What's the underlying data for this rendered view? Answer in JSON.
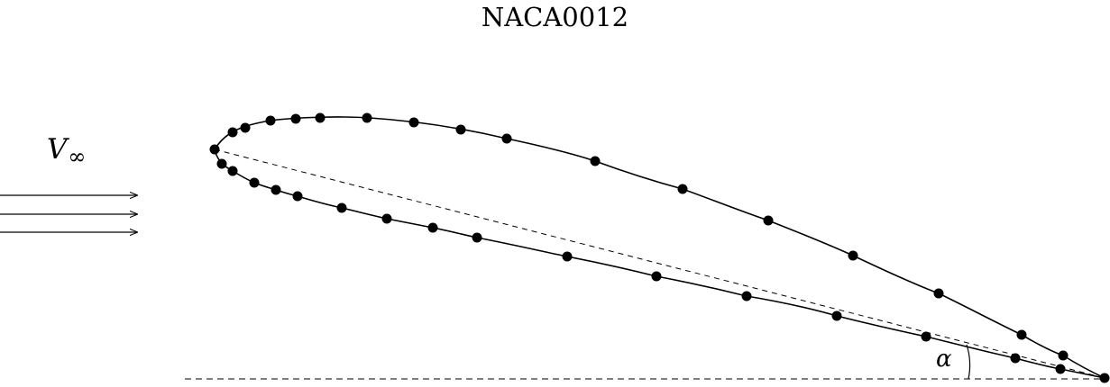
{
  "title": "NACA0012",
  "freestream": {
    "symbol": "V",
    "subscript": "∞"
  },
  "angle_label": "α",
  "colors": {
    "stroke": "#000000",
    "background": "#ffffff"
  }
}
